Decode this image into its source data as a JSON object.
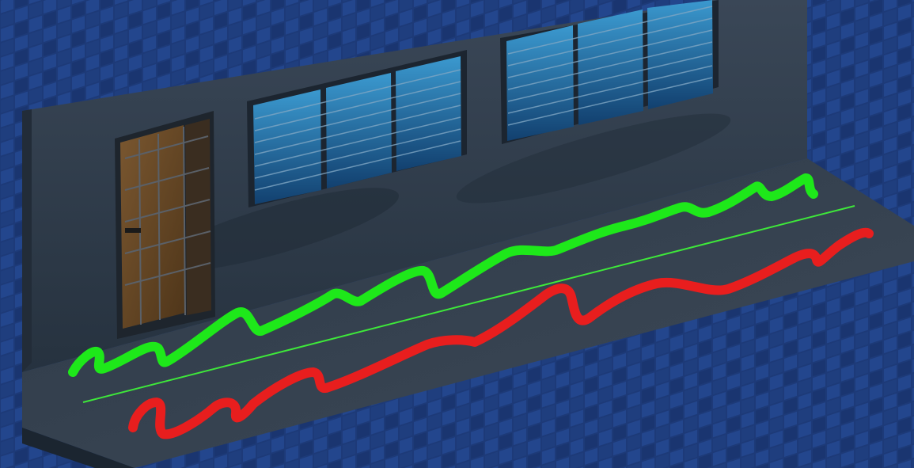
{
  "scene": {
    "type": "isometric-game-scene",
    "colors": {
      "floor_tile": "#1d3a78",
      "floor_tile_alt": "#23468d",
      "floor_grout": "#10244f",
      "wall_front": "#2f3d4d",
      "wall_top": "#3b4859",
      "wall_side": "#253140",
      "ledge": "#3a4654",
      "window_glass": "#2b7fb8",
      "window_frame": "#1c2530",
      "door_wood": "#6b4a26",
      "door_frame": "#242b33",
      "green_line": "#1ee81a",
      "red_line": "#e81e1e"
    },
    "objects": [
      {
        "name": "building-wall",
        "kind": "wall"
      },
      {
        "name": "door",
        "kind": "door",
        "material": "wood-with-iron-grille"
      },
      {
        "name": "window-left",
        "kind": "window",
        "panes": 3
      },
      {
        "name": "window-right",
        "kind": "window",
        "panes": 3
      },
      {
        "name": "sidewalk-ledge",
        "kind": "floor"
      },
      {
        "name": "green-squiggle-path",
        "kind": "drawn-path",
        "color": "green"
      },
      {
        "name": "green-guide-line",
        "kind": "drawn-line",
        "color": "green"
      },
      {
        "name": "red-squiggle-path",
        "kind": "drawn-path",
        "color": "red"
      }
    ]
  }
}
